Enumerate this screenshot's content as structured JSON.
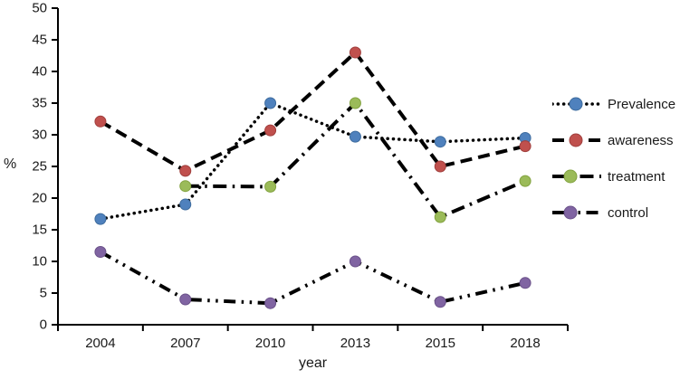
{
  "chart_data": {
    "type": "line",
    "xlabel": "year",
    "ylabel": "%",
    "categories": [
      "2004",
      "2007",
      "2010",
      "2013",
      "2015",
      "2018"
    ],
    "ylim": [
      0,
      50
    ],
    "yticks": [
      0,
      5,
      10,
      15,
      20,
      25,
      30,
      35,
      40,
      45,
      50
    ],
    "grid": false,
    "legend_position": "right",
    "line_color": "#000000",
    "series": [
      {
        "name": "Prevalence",
        "marker_color": "#4f81bd",
        "marker_edge": "#3e6c9e",
        "line_style": "dotted",
        "values": [
          16.7,
          19.0,
          35.0,
          29.7,
          28.9,
          29.5
        ]
      },
      {
        "name": "awareness",
        "marker_color": "#c0504d",
        "marker_edge": "#a03f3d",
        "line_style": "dashed",
        "values": [
          32.1,
          24.3,
          30.7,
          43.0,
          25.0,
          28.2
        ]
      },
      {
        "name": "treatment",
        "marker_color": "#9bbb59",
        "marker_edge": "#82a23f",
        "line_style": "long-dash-dot",
        "values": [
          null,
          21.9,
          21.8,
          35.0,
          17.0,
          22.7
        ]
      },
      {
        "name": "control",
        "marker_color": "#8064a2",
        "marker_edge": "#6a5189",
        "line_style": "long-dash-dot-dot",
        "values": [
          11.5,
          4.0,
          3.4,
          10.0,
          3.6,
          6.6
        ]
      }
    ]
  }
}
